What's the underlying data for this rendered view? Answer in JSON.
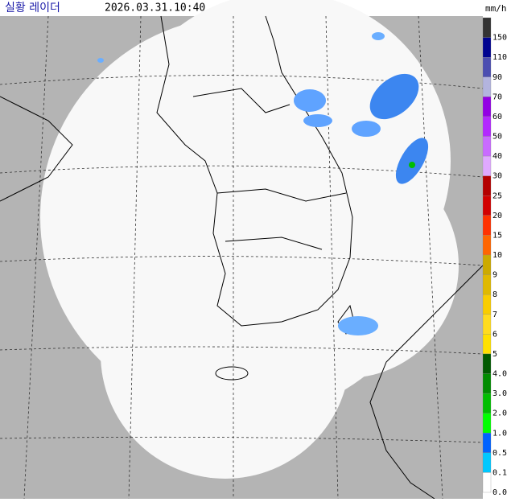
{
  "header": {
    "title": "실황 레이더",
    "timestamp": "2026.03.31.10:40"
  },
  "legend": {
    "unit": "mm/h",
    "items": [
      {
        "label": "150",
        "color": "#333333"
      },
      {
        "label": "110",
        "color": "#000390"
      },
      {
        "label": "90",
        "color": "#4c4eb1"
      },
      {
        "label": "70",
        "color": "#b3b4de"
      },
      {
        "label": "60",
        "color": "#9300e4"
      },
      {
        "label": "50",
        "color": "#b329ff"
      },
      {
        "label": "40",
        "color": "#c96bff"
      },
      {
        "label": "30",
        "color": "#e0a9ff"
      },
      {
        "label": "25",
        "color": "#b40000"
      },
      {
        "label": "20",
        "color": "#d20000"
      },
      {
        "label": "15",
        "color": "#ff3200"
      },
      {
        "label": "10",
        "color": "#ff6600"
      },
      {
        "label": "9",
        "color": "#ccaa00"
      },
      {
        "label": "8",
        "color": "#e0b900"
      },
      {
        "label": "7",
        "color": "#f9cd00"
      },
      {
        "label": "6",
        "color": "#ffdc1f"
      },
      {
        "label": "5",
        "color": "#ffe100"
      },
      {
        "label": "4.0",
        "color": "#005a00"
      },
      {
        "label": "3.0",
        "color": "#008c00"
      },
      {
        "label": "2.0",
        "color": "#00be00"
      },
      {
        "label": "1.0",
        "color": "#00ff00"
      },
      {
        "label": "0.5",
        "color": "#0063ff"
      },
      {
        "label": "0.1",
        "color": "#00c8ff"
      },
      {
        "label": "0.0",
        "color": "#ffffff"
      }
    ]
  }
}
